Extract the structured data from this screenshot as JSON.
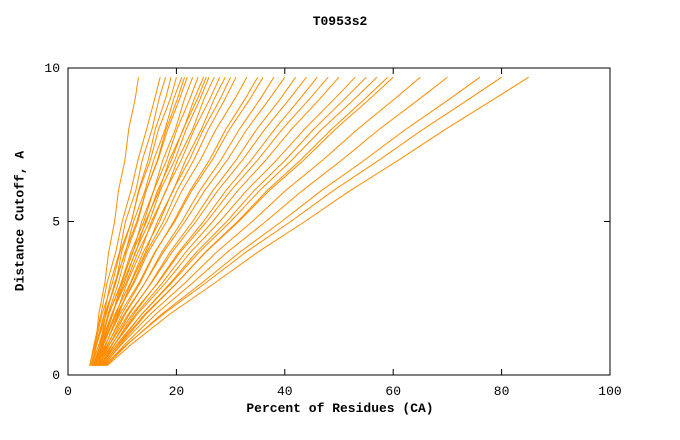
{
  "chart_data": {
    "type": "line",
    "title": "T0953s2",
    "xlabel": "Percent of Residues (CA)",
    "ylabel": "Distance Cutoff, A",
    "xlim": [
      0,
      100
    ],
    "ylim": [
      0,
      10
    ],
    "x_ticks": [
      0,
      20,
      40,
      60,
      80,
      100
    ],
    "y_ticks": [
      0,
      5,
      10
    ],
    "grid": false,
    "legend": "none",
    "background_color": "#ffffff",
    "frame_color": "#000000",
    "line_color": "#ff8c00",
    "y_levels": [
      0.3,
      1,
      2,
      3,
      4,
      5,
      6,
      7,
      8,
      9,
      9.7
    ],
    "series": [
      [
        4.5,
        5.1,
        5.7,
        6.8,
        7.5,
        8.6,
        9.3,
        10.5,
        11.2,
        12.4,
        13.0
      ],
      [
        4.0,
        4.8,
        6.1,
        7.2,
        8.8,
        10.0,
        11.6,
        12.9,
        14.5,
        16.0,
        17.0
      ],
      [
        4.5,
        5.2,
        6.7,
        7.8,
        9.5,
        10.6,
        12.5,
        13.7,
        15.5,
        16.8,
        18.0
      ],
      [
        5.0,
        5.9,
        7.0,
        8.8,
        9.9,
        11.7,
        13.0,
        14.8,
        16.1,
        18.0,
        19.0
      ],
      [
        4.0,
        5.0,
        6.3,
        8.2,
        9.6,
        11.7,
        13.1,
        15.2,
        16.7,
        18.9,
        20.0
      ],
      [
        4.5,
        5.3,
        7.1,
        8.6,
        10.6,
        12.1,
        14.2,
        15.8,
        17.9,
        19.5,
        21.0
      ],
      [
        5.0,
        6.0,
        7.4,
        9.3,
        10.8,
        12.9,
        14.4,
        16.5,
        18.1,
        20.2,
        21.5
      ],
      [
        4.2,
        5.3,
        6.8,
        8.8,
        10.5,
        12.7,
        14.4,
        16.6,
        18.4,
        20.6,
        22.0
      ],
      [
        5.5,
        6.4,
        8.3,
        9.8,
        12.0,
        13.6,
        15.8,
        17.5,
        19.8,
        21.5,
        23.0
      ],
      [
        4.8,
        6.0,
        7.6,
        9.8,
        11.6,
        14.0,
        15.8,
        18.2,
        20.1,
        22.5,
        24.0
      ],
      [
        5.2,
        6.2,
        8.3,
        10.1,
        12.5,
        14.3,
        16.8,
        18.7,
        21.3,
        23.3,
        25.0
      ],
      [
        4.4,
        5.7,
        7.5,
        9.9,
        11.9,
        14.5,
        16.5,
        19.1,
        21.2,
        23.9,
        25.5
      ],
      [
        5.0,
        6.3,
        8.1,
        10.4,
        12.4,
        15.0,
        17.0,
        19.7,
        21.8,
        24.4,
        26.0
      ],
      [
        5.5,
        6.6,
        8.9,
        10.9,
        13.4,
        15.4,
        18.1,
        20.2,
        23.0,
        25.1,
        27.0
      ],
      [
        4.6,
        6.0,
        8.1,
        10.7,
        12.9,
        15.7,
        18.0,
        20.9,
        23.3,
        26.2,
        28.0
      ],
      [
        5.8,
        7.0,
        9.4,
        11.6,
        14.3,
        16.5,
        19.4,
        21.7,
        24.6,
        27.0,
        29.0
      ],
      [
        5.0,
        6.5,
        8.7,
        11.5,
        13.9,
        16.9,
        19.3,
        22.4,
        25.0,
        28.1,
        30.0
      ],
      [
        5.4,
        7.0,
        9.2,
        12.0,
        14.5,
        17.6,
        20.1,
        23.2,
        25.9,
        29.0,
        31.0
      ],
      [
        4.8,
        6.5,
        9.0,
        12.2,
        14.8,
        18.2,
        21.0,
        24.4,
        27.3,
        30.8,
        33.0
      ],
      [
        5.6,
        7.4,
        10.0,
        13.3,
        16.1,
        19.5,
        22.5,
        26.1,
        29.1,
        32.7,
        35.0
      ],
      [
        5.0,
        6.9,
        9.6,
        13.1,
        16.0,
        19.7,
        22.8,
        26.6,
        29.8,
        33.6,
        36.0
      ],
      [
        5.8,
        7.7,
        10.6,
        14.2,
        17.3,
        21.0,
        24.3,
        28.2,
        31.6,
        35.5,
        38.0
      ],
      [
        5.2,
        7.3,
        10.4,
        14.2,
        17.6,
        21.6,
        25.2,
        29.4,
        33.0,
        37.2,
        40.0
      ],
      [
        6.0,
        8.2,
        11.4,
        15.3,
        18.8,
        23.0,
        26.7,
        31.0,
        34.8,
        39.2,
        42.0
      ],
      [
        5.4,
        7.7,
        11.2,
        15.4,
        19.2,
        23.6,
        27.6,
        32.2,
        36.3,
        40.9,
        44.0
      ],
      [
        6.2,
        8.6,
        12.2,
        16.5,
        20.4,
        25.0,
        29.1,
        33.8,
        38.1,
        42.8,
        46.0
      ],
      [
        5.6,
        8.1,
        11.9,
        16.6,
        20.7,
        25.6,
        30.0,
        35.0,
        39.5,
        44.6,
        48.0
      ],
      [
        6.0,
        8.6,
        12.6,
        17.4,
        21.7,
        26.7,
        31.3,
        36.5,
        41.2,
        46.5,
        50.0
      ],
      [
        5.8,
        8.6,
        12.9,
        18.0,
        22.6,
        28.0,
        32.9,
        38.5,
        43.6,
        49.2,
        53.0
      ],
      [
        6.4,
        9.3,
        13.7,
        18.9,
        23.7,
        29.3,
        34.3,
        40.1,
        45.3,
        51.1,
        55.0
      ],
      [
        6.0,
        9.0,
        13.7,
        19.1,
        24.2,
        30.0,
        35.3,
        41.3,
        46.8,
        52.9,
        57.0
      ],
      [
        6.6,
        9.7,
        14.5,
        20.1,
        25.3,
        31.3,
        36.7,
        42.9,
        48.6,
        54.8,
        59.0
      ],
      [
        6.2,
        9.4,
        14.3,
        20.1,
        25.4,
        31.5,
        37.1,
        43.5,
        49.3,
        55.7,
        60.0
      ],
      [
        6.5,
        9.9,
        15.3,
        21.6,
        27.4,
        34.0,
        40.1,
        47.0,
        53.4,
        60.3,
        65.0
      ],
      [
        6.8,
        10.5,
        16.3,
        23.0,
        29.4,
        36.5,
        43.2,
        50.5,
        57.4,
        64.9,
        70.0
      ],
      [
        7.0,
        11.0,
        17.4,
        24.7,
        31.7,
        39.4,
        46.7,
        54.7,
        62.3,
        70.5,
        76.0
      ],
      [
        6.6,
        10.9,
        17.7,
        25.4,
        32.8,
        41.1,
        48.9,
        57.4,
        65.5,
        74.1,
        80.0
      ],
      [
        7.2,
        11.7,
        18.9,
        27.1,
        35.0,
        43.7,
        52.0,
        61.0,
        69.6,
        78.7,
        85.0
      ]
    ]
  }
}
